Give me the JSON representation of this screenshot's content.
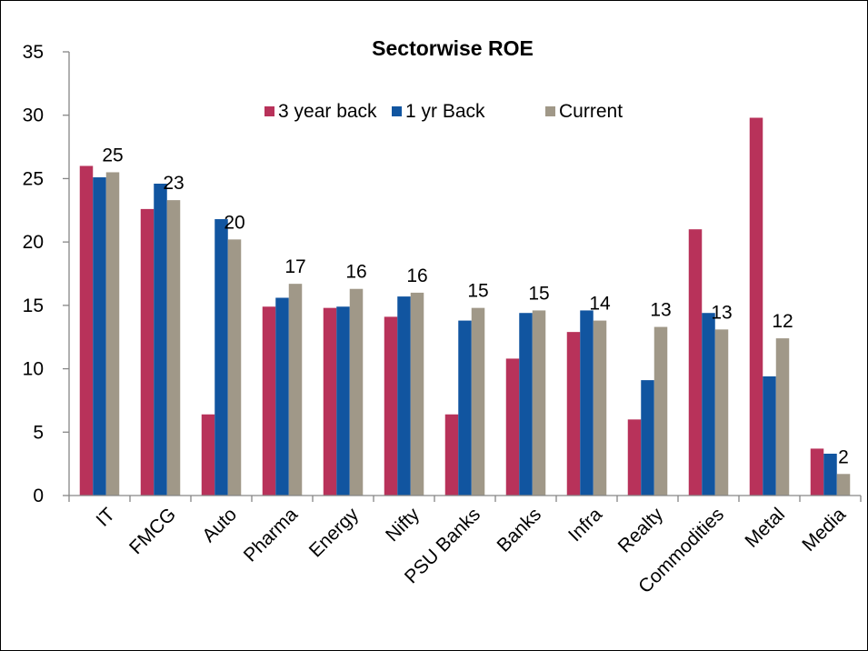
{
  "chart_data": {
    "type": "bar",
    "title": "Sectorwise ROE",
    "xlabel": "",
    "ylabel": "",
    "ylim": [
      0,
      35
    ],
    "yticks": [
      0,
      5,
      10,
      15,
      20,
      25,
      30,
      35
    ],
    "grid": false,
    "legend_position": "top-center",
    "categories": [
      "IT",
      "FMCG",
      "Auto",
      "Pharma",
      "Energy",
      "Nifty",
      "PSU Banks",
      "Banks",
      "Infra",
      "Realty",
      "Commodities",
      "Metal",
      "Media"
    ],
    "series": [
      {
        "name": "3 year back",
        "color": "#B8325A",
        "values": [
          26.0,
          22.6,
          6.4,
          14.9,
          14.8,
          14.1,
          6.4,
          10.8,
          12.9,
          6.0,
          21.0,
          29.8,
          3.7
        ]
      },
      {
        "name": "1 yr Back",
        "color": "#1155A0",
        "values": [
          25.1,
          24.6,
          21.8,
          15.6,
          14.9,
          15.7,
          13.8,
          14.4,
          14.6,
          9.1,
          14.4,
          9.4,
          3.3
        ]
      },
      {
        "name": "Current",
        "color": "#A09888",
        "values": [
          25.5,
          23.3,
          20.2,
          16.7,
          16.3,
          16.0,
          14.8,
          14.6,
          13.8,
          13.3,
          13.1,
          12.4,
          1.7
        ]
      }
    ],
    "data_labels": [
      "25",
      "23",
      "20",
      "17",
      "16",
      "16",
      "15",
      "15",
      "14",
      "13",
      "13",
      "12",
      "2"
    ]
  }
}
